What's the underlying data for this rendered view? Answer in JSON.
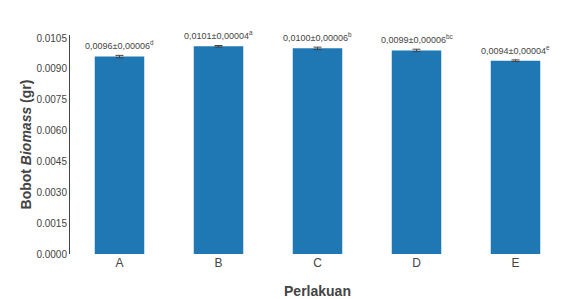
{
  "chart_data": {
    "type": "bar",
    "categories": [
      "A",
      "B",
      "C",
      "D",
      "E"
    ],
    "values": [
      0.0096,
      0.0101,
      0.01,
      0.0099,
      0.0094
    ],
    "errors": [
      6e-05,
      4e-05,
      6e-05,
      6e-05,
      4e-05
    ],
    "data_labels": true,
    "value_labels": [
      "0,0096±0,00006",
      "0,0101±0,00004",
      "0,0100±0,00006",
      "0,0099±0,00006",
      "0,0094±0,00004"
    ],
    "annotations": [
      "d",
      "a",
      "b",
      "bc",
      "e"
    ],
    "xlabel": "Perlakuan",
    "ylabel": "Bobot Biomass (gr)",
    "ylim": [
      0.0,
      0.01065
    ],
    "yticks": [
      {
        "value": 0.0,
        "label": "0.0000"
      },
      {
        "value": 0.0015,
        "label": "0.0015"
      },
      {
        "value": 0.003,
        "label": "0.0030"
      },
      {
        "value": 0.0045,
        "label": "0.0045"
      },
      {
        "value": 0.006,
        "label": "0.0060"
      },
      {
        "value": 0.0075,
        "label": "0.0075"
      },
      {
        "value": 0.009,
        "label": "0.0090"
      },
      {
        "value": 0.0105,
        "label": "0.0105"
      }
    ],
    "grid": false
  }
}
